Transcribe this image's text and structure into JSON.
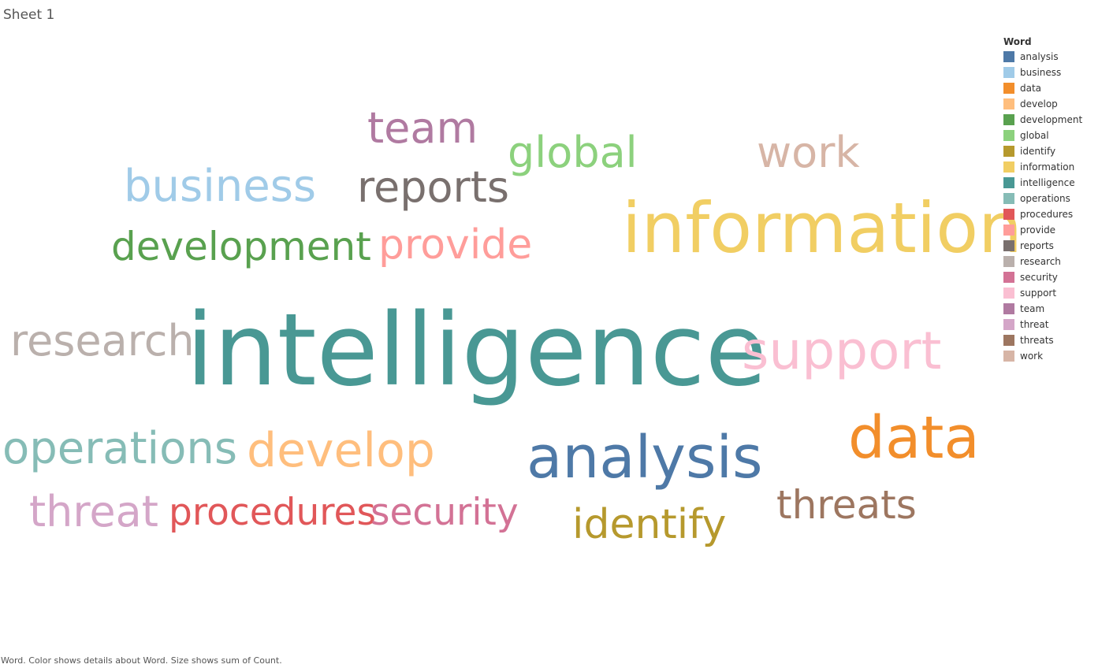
{
  "sheet_title": "Sheet 1",
  "legend": {
    "title": "Word",
    "items": [
      {
        "label": "analysis",
        "color": "#4e79a7"
      },
      {
        "label": "business",
        "color": "#a0cbe8"
      },
      {
        "label": "data",
        "color": "#f28e2b"
      },
      {
        "label": "develop",
        "color": "#ffbe7d"
      },
      {
        "label": "development",
        "color": "#59a14f"
      },
      {
        "label": "global",
        "color": "#8cd17d"
      },
      {
        "label": "identify",
        "color": "#b6992d"
      },
      {
        "label": "information",
        "color": "#f1ce63"
      },
      {
        "label": "intelligence",
        "color": "#499894"
      },
      {
        "label": "operations",
        "color": "#86bcb6"
      },
      {
        "label": "procedures",
        "color": "#e15759"
      },
      {
        "label": "provide",
        "color": "#ff9d9a"
      },
      {
        "label": "reports",
        "color": "#79706e"
      },
      {
        "label": "research",
        "color": "#bab0ac"
      },
      {
        "label": "security",
        "color": "#d37295"
      },
      {
        "label": "support",
        "color": "#fabfd2"
      },
      {
        "label": "team",
        "color": "#b07aa1"
      },
      {
        "label": "threat",
        "color": "#d4a6c8"
      },
      {
        "label": "threats",
        "color": "#9d7660"
      },
      {
        "label": "work",
        "color": "#d7b5a6"
      }
    ]
  },
  "chart_data": {
    "type": "wordcloud",
    "size_measure": "sum of Count",
    "color_dimension": "Word",
    "words": [
      {
        "word": "intelligence",
        "rel_size": 1.0
      },
      {
        "word": "information",
        "rel_size": 0.73
      },
      {
        "word": "analysis",
        "rel_size": 0.61
      },
      {
        "word": "data",
        "rel_size": 0.6
      },
      {
        "word": "support",
        "rel_size": 0.58
      },
      {
        "word": "develop",
        "rel_size": 0.53
      },
      {
        "word": "operations",
        "rel_size": 0.5
      },
      {
        "word": "business",
        "rel_size": 0.5
      },
      {
        "word": "team",
        "rel_size": 0.48
      },
      {
        "word": "reports",
        "rel_size": 0.47
      },
      {
        "word": "research",
        "rel_size": 0.47
      },
      {
        "word": "threat",
        "rel_size": 0.47
      },
      {
        "word": "global",
        "rel_size": 0.47
      },
      {
        "word": "work",
        "rel_size": 0.47
      },
      {
        "word": "identify",
        "rel_size": 0.46
      },
      {
        "word": "provide",
        "rel_size": 0.46
      },
      {
        "word": "threats",
        "rel_size": 0.45
      },
      {
        "word": "development",
        "rel_size": 0.45
      },
      {
        "word": "procedures",
        "rel_size": 0.42
      },
      {
        "word": "security",
        "rel_size": 0.42
      }
    ]
  },
  "caption": "Word.  Color shows details about Word.  Size shows sum of Count."
}
